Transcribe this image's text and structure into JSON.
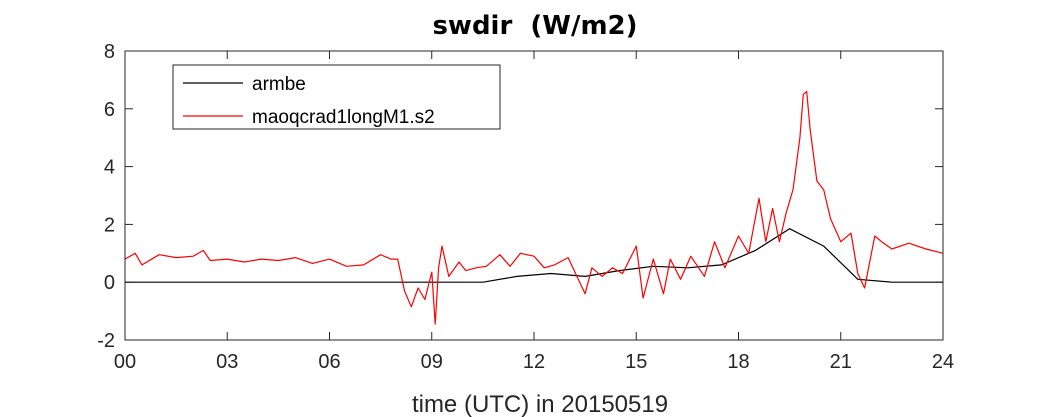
{
  "chart_data": {
    "type": "line",
    "title": "swdir  (W/m2)",
    "xlabel": "time (UTC) in 20150519",
    "ylabel": "",
    "xlim": [
      0,
      24
    ],
    "ylim": [
      -2,
      8
    ],
    "xticks": [
      0,
      3,
      6,
      9,
      12,
      15,
      18,
      21,
      24
    ],
    "xtick_labels": [
      "00",
      "03",
      "06",
      "09",
      "12",
      "15",
      "18",
      "21",
      "24"
    ],
    "yticks": [
      -2,
      0,
      2,
      4,
      6,
      8
    ],
    "ytick_labels": [
      "-2",
      "0",
      "2",
      "4",
      "6",
      "8"
    ],
    "grid": false,
    "legend_position": "top-left",
    "series": [
      {
        "name": "armbe",
        "color": "#000000",
        "x": [
          0,
          10.5,
          11.5,
          12.5,
          13.5,
          14.5,
          15.5,
          16.5,
          17.5,
          18.5,
          19.5,
          20.5,
          21.5,
          22.5,
          23.5,
          24
        ],
        "y": [
          0,
          0,
          0.2,
          0.3,
          0.2,
          0.4,
          0.55,
          0.5,
          0.6,
          1.1,
          1.85,
          1.25,
          0.1,
          0,
          0,
          0
        ]
      },
      {
        "name": "maoqcrad1longM1.s2",
        "color": "#ff0000",
        "x": [
          0,
          0.3,
          0.5,
          1.0,
          1.5,
          2.0,
          2.3,
          2.5,
          3.0,
          3.5,
          4.0,
          4.5,
          5.0,
          5.5,
          6.0,
          6.5,
          7.0,
          7.5,
          7.8,
          8.0,
          8.2,
          8.4,
          8.6,
          8.8,
          9.0,
          9.1,
          9.2,
          9.3,
          9.5,
          9.8,
          10.0,
          10.3,
          10.6,
          11.0,
          11.3,
          11.6,
          12.0,
          12.3,
          12.6,
          13.0,
          13.3,
          13.5,
          13.7,
          14.0,
          14.3,
          14.6,
          15.0,
          15.2,
          15.5,
          15.8,
          16.0,
          16.3,
          16.6,
          17.0,
          17.3,
          17.6,
          18.0,
          18.3,
          18.6,
          18.8,
          19.0,
          19.2,
          19.4,
          19.6,
          19.8,
          19.9,
          20.0,
          20.1,
          20.3,
          20.5,
          20.7,
          21.0,
          21.3,
          21.5,
          21.7,
          22.0,
          22.2,
          22.5,
          23.0,
          23.5,
          24.0
        ],
        "y": [
          0.8,
          1.0,
          0.6,
          0.95,
          0.85,
          0.9,
          1.1,
          0.75,
          0.8,
          0.7,
          0.8,
          0.75,
          0.85,
          0.65,
          0.8,
          0.55,
          0.6,
          0.95,
          0.8,
          0.8,
          -0.3,
          -0.85,
          -0.2,
          -0.6,
          0.35,
          -1.45,
          0.5,
          1.25,
          0.2,
          0.7,
          0.4,
          0.5,
          0.55,
          0.95,
          0.55,
          1.0,
          0.9,
          0.5,
          0.6,
          0.85,
          0.1,
          -0.4,
          0.5,
          0.2,
          0.5,
          0.3,
          1.25,
          -0.55,
          0.8,
          -0.4,
          0.8,
          0.1,
          0.9,
          0.2,
          1.4,
          0.5,
          1.6,
          1.0,
          2.9,
          1.4,
          2.55,
          1.4,
          2.4,
          3.2,
          5.0,
          6.5,
          6.6,
          5.3,
          3.5,
          3.2,
          2.2,
          1.4,
          1.7,
          0.3,
          -0.2,
          1.6,
          1.4,
          1.15,
          1.35,
          1.15,
          1.0
        ]
      }
    ]
  }
}
